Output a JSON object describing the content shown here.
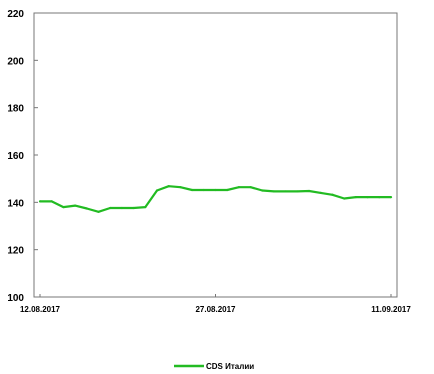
{
  "chart_data": {
    "type": "line",
    "x": [
      "12.08.2017",
      "13.08.2017",
      "14.08.2017",
      "15.08.2017",
      "16.08.2017",
      "17.08.2017",
      "18.08.2017",
      "19.08.2017",
      "20.08.2017",
      "21.08.2017",
      "22.08.2017",
      "23.08.2017",
      "24.08.2017",
      "25.08.2017",
      "26.08.2017",
      "27.08.2017",
      "28.08.2017",
      "29.08.2017",
      "30.08.2017",
      "31.08.2017",
      "01.09.2017",
      "02.09.2017",
      "03.09.2017",
      "04.09.2017",
      "05.09.2017",
      "06.09.2017",
      "07.09.2017",
      "08.09.2017",
      "09.09.2017",
      "10.09.2017",
      "11.09.2017"
    ],
    "series": [
      {
        "name": "CDS Италии",
        "color": "#22bb22",
        "values": [
          140.4,
          140.4,
          138.0,
          138.6,
          137.4,
          136.0,
          137.6,
          137.6,
          137.6,
          138.0,
          145.0,
          146.8,
          146.4,
          145.2,
          145.2,
          145.2,
          145.2,
          146.4,
          146.4,
          145.0,
          144.6,
          144.6,
          144.6,
          144.8,
          144.0,
          143.2,
          141.6,
          142.2,
          142.2,
          142.2,
          142.2
        ]
      }
    ],
    "x_tick_labels": [
      "12.08.2017",
      "27.08.2017",
      "11.09.2017"
    ],
    "y_ticks": [
      100,
      120,
      140,
      160,
      180,
      200,
      220
    ],
    "ylim": [
      100,
      220
    ],
    "title": "",
    "xlabel": "",
    "ylabel": "",
    "grid": false,
    "legend_position": "bottom"
  }
}
